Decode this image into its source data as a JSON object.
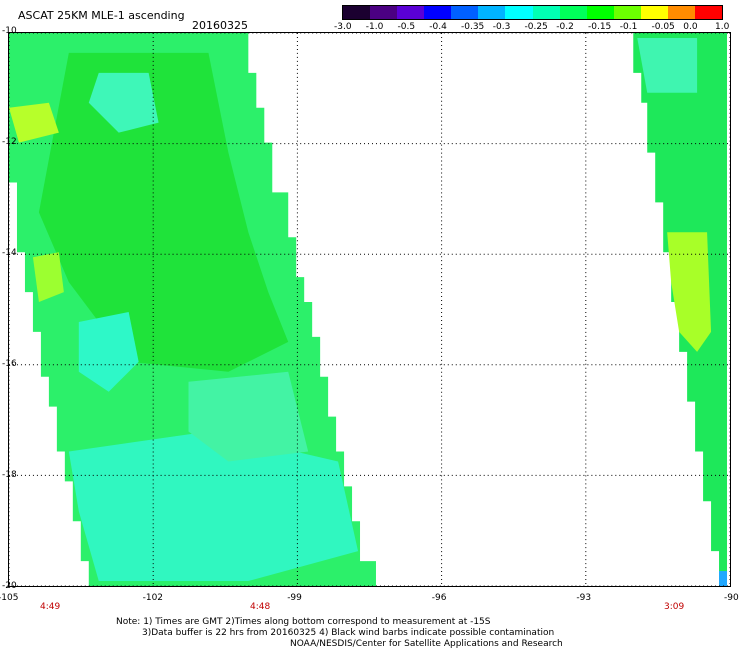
{
  "header": {
    "title": "ASCAT 25KM MLE-1 ascending",
    "date": "20160325"
  },
  "colorbar": {
    "labels": [
      "-3.0",
      "-1.0",
      "-0.5",
      "-0.4",
      "-0.35",
      "-0.3",
      "-0.25",
      "-0.2",
      "-0.15",
      "-0.1",
      "-0.05",
      "0.0",
      "1.0"
    ],
    "colors": [
      "#1b0030",
      "#4b0082",
      "#5a00d6",
      "#0000ff",
      "#0060ff",
      "#00b4ff",
      "#00ffff",
      "#00ffb4",
      "#00ff5a",
      "#00ff00",
      "#6cff00",
      "#ffff00",
      "#ff8c00",
      "#ff0000"
    ]
  },
  "map": {
    "y_ticks": [
      "-10",
      "-12",
      "-14",
      "-16",
      "-18",
      "-20"
    ],
    "x_ticks": [
      "-105",
      "-102",
      "-99",
      "-96",
      "-93",
      "-90"
    ],
    "pass_times": [
      "4:49",
      "4:48",
      "3:09"
    ]
  },
  "notes": {
    "line1": "Note: 1) Times are GMT 2)Times along bottom correspond to measurement at -15S",
    "line2": "3)Data buffer is 22 hrs from 20160325 4) Black wind barbs indicate possible contamination",
    "line3": "NOAA/NESDIS/Center for Satellite Applications and Research"
  }
}
